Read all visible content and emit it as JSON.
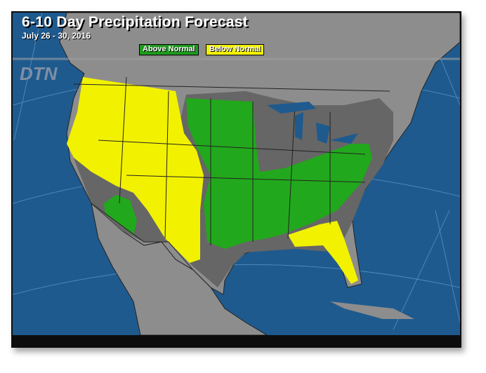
{
  "map": {
    "title": "6-10 Day Precipitation Forecast",
    "date_range": "July 26 - 30, 2016",
    "logo_text": "DTN",
    "legend": [
      {
        "label": "Above Normal",
        "color": "#22a81c"
      },
      {
        "label": "Below Normal",
        "color": "#f2f200"
      }
    ],
    "colors": {
      "ocean": "#1e5a8e",
      "land": "#8d8d8d",
      "normal": "#666666",
      "above": "#22a81c",
      "below": "#f2f200"
    }
  }
}
